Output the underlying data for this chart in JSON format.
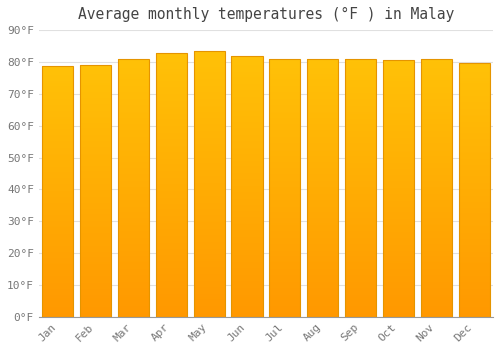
{
  "title": "Average monthly temperatures (°F ) in Malay",
  "months": [
    "Jan",
    "Feb",
    "Mar",
    "Apr",
    "May",
    "Jun",
    "Jul",
    "Aug",
    "Sep",
    "Oct",
    "Nov",
    "Dec"
  ],
  "values": [
    78.8,
    79.0,
    81.0,
    82.8,
    83.5,
    81.8,
    81.0,
    81.0,
    80.8,
    80.5,
    80.8,
    79.7
  ],
  "bar_color_top": "#FFC107",
  "bar_color_bottom": "#FF9800",
  "bar_edge_color": "#E59400",
  "background_color": "#ffffff",
  "grid_color": "#e0e0e0",
  "text_color": "#777777",
  "ylim": [
    0,
    90
  ],
  "ytick_step": 10,
  "title_fontsize": 10.5,
  "tick_fontsize": 8.0,
  "bar_width": 0.82
}
